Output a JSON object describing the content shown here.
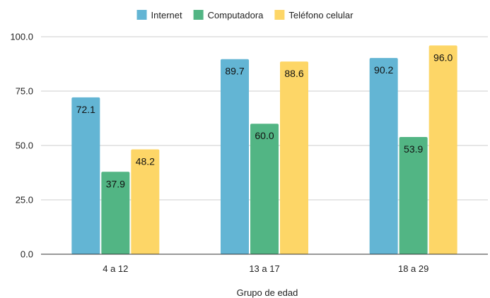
{
  "chart_data": {
    "type": "bar",
    "title": "",
    "xlabel": "Grupo de edad",
    "ylabel": "",
    "categories": [
      "4 a 12",
      "13 a 17",
      "18 a 29"
    ],
    "series": [
      {
        "name": "Internet",
        "color": "#63b5d4",
        "values": [
          72.1,
          89.7,
          90.2
        ],
        "labels": [
          "72.1",
          "89.7",
          "90.2"
        ]
      },
      {
        "name": "Computadora",
        "color": "#52b584",
        "values": [
          37.9,
          60.0,
          53.9
        ],
        "labels": [
          "37.9",
          "60.0",
          "53.9"
        ]
      },
      {
        "name": "Teléfono celular",
        "color": "#fdd667",
        "values": [
          48.2,
          88.6,
          96.0
        ],
        "labels": [
          "48.2",
          "88.6",
          "96.0"
        ]
      }
    ],
    "ylim": [
      0,
      100
    ],
    "yticks": [
      "0.0",
      "25.0",
      "50.0",
      "75.0",
      "100.0"
    ],
    "grid": true,
    "legend_position": "top-center"
  }
}
